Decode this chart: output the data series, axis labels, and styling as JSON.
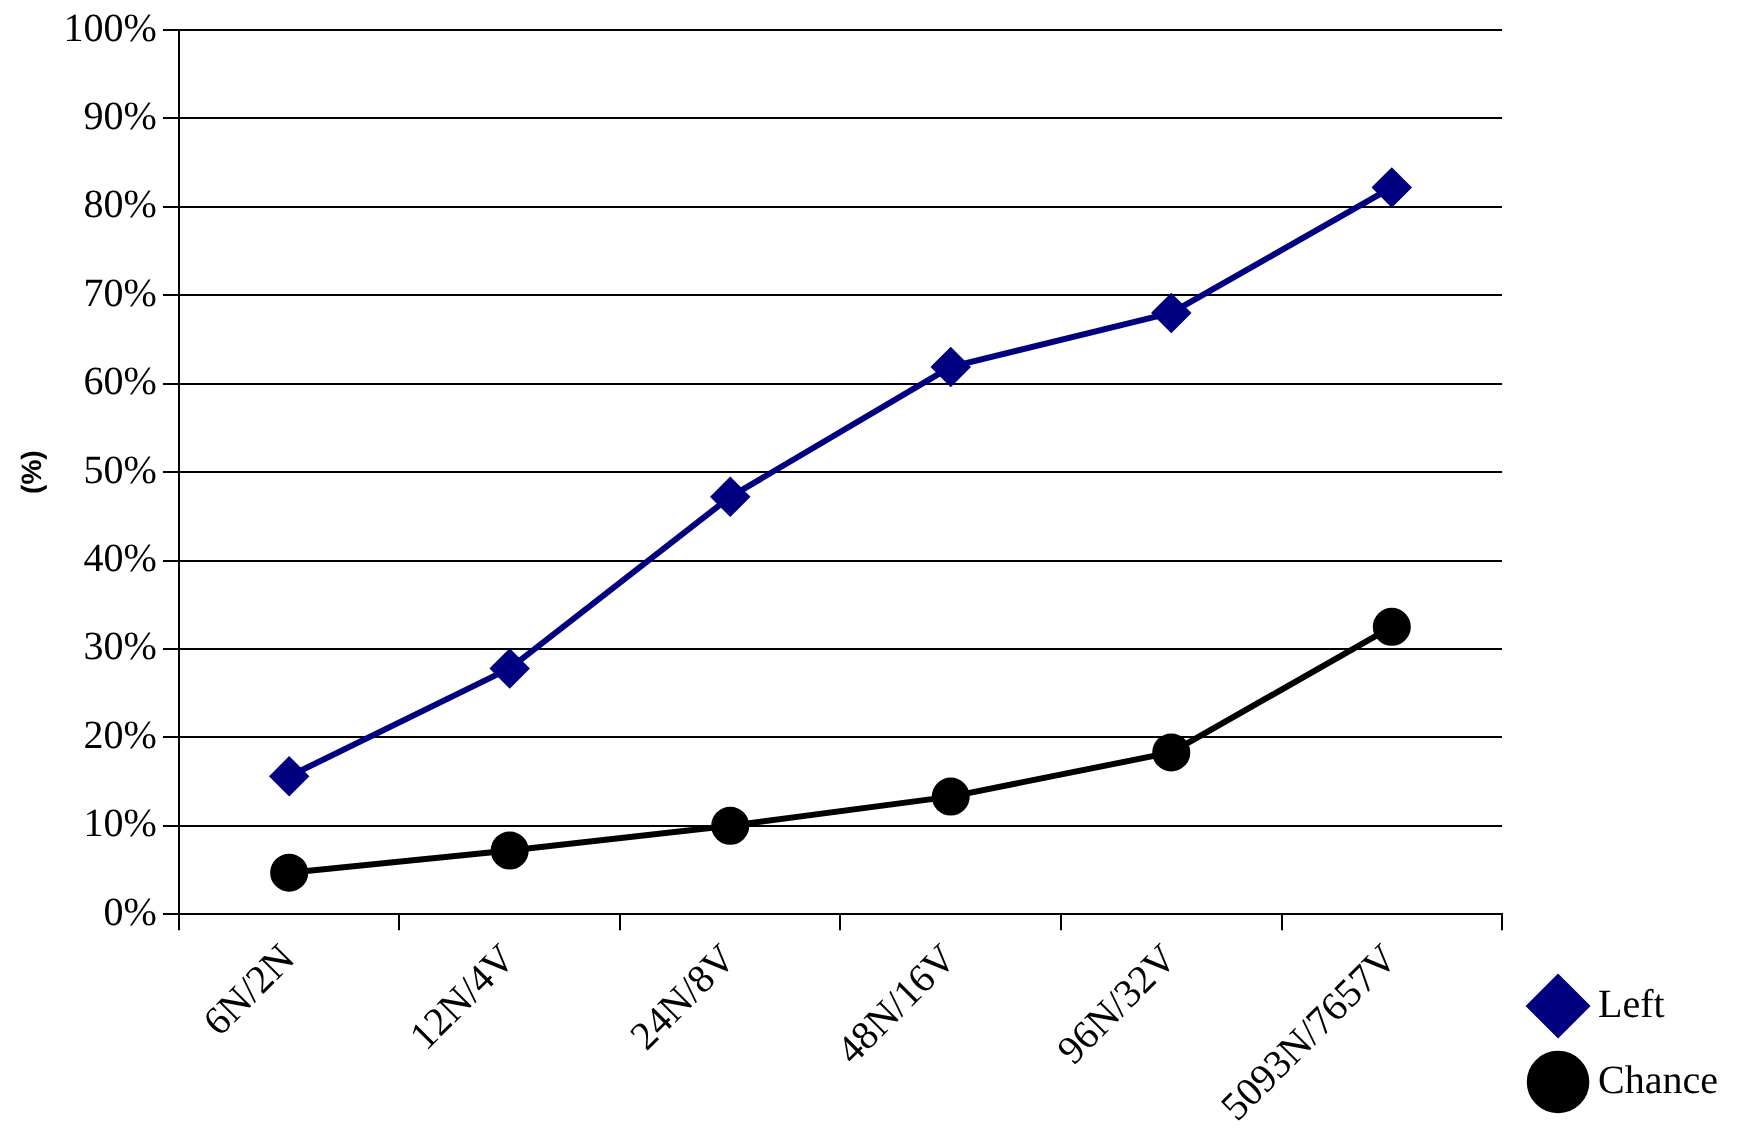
{
  "chart_data": {
    "type": "line",
    "ylabel": "(%)",
    "categories": [
      "6N/2N",
      "12N/4V",
      "24N/8V",
      "48N/16V",
      "96N/32V",
      "5093N/7657V"
    ],
    "series": [
      {
        "name": "Left",
        "color": "#000080",
        "marker": "diamond",
        "values": [
          15.6,
          27.8,
          47.2,
          61.9,
          68,
          82.2
        ]
      },
      {
        "name": "Chance",
        "color": "#000000",
        "marker": "circle",
        "values": [
          4.7,
          7.2,
          10,
          13.3,
          18.3,
          32.5
        ]
      }
    ],
    "ylim": [
      0,
      100
    ],
    "yticks": [
      {
        "value": 0,
        "label": "0%"
      },
      {
        "value": 10,
        "label": "10%"
      },
      {
        "value": 20,
        "label": "20%"
      },
      {
        "value": 30,
        "label": "30%"
      },
      {
        "value": 40,
        "label": "40%"
      },
      {
        "value": 50,
        "label": "50%"
      },
      {
        "value": 60,
        "label": "60%"
      },
      {
        "value": 70,
        "label": "70%"
      },
      {
        "value": 80,
        "label": "80%"
      },
      {
        "value": 90,
        "label": "90%"
      },
      {
        "value": 100,
        "label": "100%"
      }
    ],
    "grid": "y",
    "legend": "bottom right",
    "line_style": "solid"
  }
}
